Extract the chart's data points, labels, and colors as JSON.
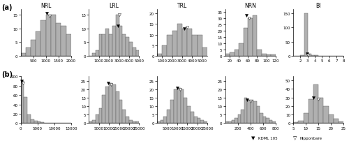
{
  "title_a": "(a)",
  "title_b": "(b)",
  "col_titles": [
    "NRL",
    "LRL",
    "TRL",
    "NRN",
    "BI"
  ],
  "legend_labels": [
    "KDML 105",
    "Nipponbare"
  ],
  "row_a": {
    "NRL": {
      "bin_edges": [
        0,
        200,
        400,
        600,
        800,
        1000,
        1200,
        1400,
        1600,
        1800,
        2000
      ],
      "counts": [
        1,
        3,
        6,
        9,
        13,
        15,
        15,
        12,
        11,
        8,
        3
      ],
      "ylim": [
        0,
        17
      ],
      "yticks": [
        0,
        5,
        10,
        15
      ],
      "xlim": [
        0,
        2000
      ],
      "xticks": [
        500,
        1000,
        1500,
        2000
      ],
      "kdml_x": 1050,
      "kdml_y": 15.5,
      "nip_x": 1150,
      "nip_y": 14.5,
      "kdml_filled": true,
      "nip_filled": false
    },
    "LRL": {
      "bin_edges": [
        0,
        333,
        666,
        1000,
        1333,
        1666,
        2000,
        2333,
        2666,
        3000,
        3333,
        3666,
        4000,
        4333,
        4666,
        5000
      ],
      "counts": [
        0,
        1,
        2,
        8,
        8,
        10,
        8,
        11,
        15,
        11,
        8,
        7,
        5,
        3,
        2,
        1
      ],
      "ylim": [
        0,
        17
      ],
      "yticks": [
        0,
        5,
        10,
        15
      ],
      "xlim": [
        0,
        5000
      ],
      "xticks": [
        1000,
        2000,
        3000,
        4000,
        5000
      ],
      "kdml_x": 2900,
      "kdml_y": 11,
      "nip_x": 3000,
      "nip_y": 15,
      "kdml_filled": true,
      "nip_filled": false
    },
    "TRL": {
      "bin_edges": [
        500,
        1000,
        1500,
        2000,
        2500,
        3000,
        3500,
        4000,
        4500,
        5000,
        5500
      ],
      "counts": [
        1,
        5,
        10,
        12,
        15,
        13,
        13,
        10,
        10,
        4,
        2
      ],
      "ylim": [
        0,
        22
      ],
      "yticks": [
        0,
        5,
        10,
        15,
        20
      ],
      "xlim": [
        500,
        5500
      ],
      "xticks": [
        1000,
        2000,
        3000,
        4000,
        5000
      ],
      "kdml_x": 3200,
      "kdml_y": 13,
      "nip_x": 3500,
      "nip_y": 13.5,
      "kdml_filled": false,
      "nip_filled": false
    },
    "NRN": {
      "bin_edges": [
        10,
        20,
        30,
        40,
        50,
        60,
        70,
        80,
        90,
        100,
        110,
        120
      ],
      "counts": [
        2,
        3,
        5,
        10,
        22,
        30,
        32,
        5,
        2,
        1,
        1,
        0
      ],
      "ylim": [
        0,
        37
      ],
      "yticks": [
        0,
        5,
        10,
        15,
        20,
        25,
        30,
        35
      ],
      "xlim": [
        10,
        120
      ],
      "xticks": [
        20,
        40,
        60,
        80,
        100,
        120
      ],
      "kdml_x": 57,
      "kdml_y": 32,
      "nip_x": 63,
      "nip_y": 30,
      "kdml_filled": true,
      "nip_filled": false
    },
    "BI": {
      "bin_edges": [
        1.0,
        1.5,
        2.0,
        2.5,
        3.0,
        3.5,
        4.0,
        4.5,
        5.0,
        5.5,
        6.0,
        6.5,
        7.0,
        7.5,
        8.0
      ],
      "counts": [
        0,
        0,
        3,
        150,
        7,
        3,
        2,
        1,
        0,
        0,
        0,
        0,
        0,
        0,
        0
      ],
      "ylim": [
        0,
        165
      ],
      "yticks": [
        0,
        50,
        100,
        150
      ],
      "xlim": [
        1.0,
        8.0
      ],
      "xticks": [
        2,
        3,
        4,
        5,
        6,
        7,
        8
      ],
      "kdml_x": 2.9,
      "kdml_y": 7,
      "nip_x": 3.0,
      "nip_y": 3,
      "kdml_filled": true,
      "nip_filled": false
    }
  },
  "row_b": {
    "NRL": {
      "bin_edges": [
        0,
        1000,
        2000,
        3000,
        4000,
        5000,
        6000,
        7000,
        8000,
        9000,
        10000,
        11000,
        12000,
        13000,
        14000,
        15000
      ],
      "counts": [
        90,
        55,
        18,
        8,
        5,
        3,
        2,
        1,
        0,
        0,
        0,
        0,
        0,
        0,
        0,
        0
      ],
      "ylim": [
        0,
        100
      ],
      "yticks": [
        0,
        20,
        40,
        60,
        80,
        100
      ],
      "xlim": [
        0,
        15000
      ],
      "xticks": [
        0,
        5000,
        10000,
        15000
      ],
      "kdml_x": 300,
      "kdml_y": 90,
      "nip_x": 700,
      "nip_y": 85,
      "kdml_filled": true,
      "nip_filled": false
    },
    "LRL": {
      "bin_edges": [
        0,
        1667,
        3333,
        5000,
        6667,
        8333,
        10000,
        11667,
        13333,
        15000,
        16667,
        18333,
        20000,
        21667,
        23333,
        25000
      ],
      "counts": [
        1,
        2,
        5,
        9,
        17,
        22,
        24,
        23,
        19,
        14,
        8,
        4,
        2,
        1,
        1,
        0
      ],
      "ylim": [
        0,
        28
      ],
      "yticks": [
        0,
        5,
        10,
        15,
        20,
        25
      ],
      "xlim": [
        0,
        25000
      ],
      "xticks": [
        5000,
        10000,
        15000,
        20000,
        25000
      ],
      "kdml_x": 9500,
      "kdml_y": 24,
      "nip_x": 11000,
      "nip_y": 23,
      "kdml_filled": true,
      "nip_filled": false
    },
    "TRL": {
      "bin_edges": [
        0,
        1667,
        3333,
        5000,
        6667,
        8333,
        10000,
        11667,
        13333,
        15000,
        16667,
        18333,
        20000,
        21667,
        23333,
        25000
      ],
      "counts": [
        1,
        2,
        4,
        8,
        14,
        20,
        21,
        20,
        15,
        10,
        7,
        4,
        3,
        2,
        1,
        0
      ],
      "ylim": [
        0,
        28
      ],
      "yticks": [
        0,
        5,
        10,
        15,
        20,
        25
      ],
      "xlim": [
        0,
        25000
      ],
      "xticks": [
        5000,
        10000,
        15000,
        20000,
        25000
      ],
      "kdml_x": 10000,
      "kdml_y": 21,
      "nip_x": 11500,
      "nip_y": 20,
      "kdml_filled": true,
      "nip_filled": false
    },
    "NRN": {
      "bin_edges": [
        0,
        50,
        100,
        150,
        200,
        250,
        300,
        350,
        400,
        450,
        500,
        550,
        600,
        650,
        700,
        750,
        800
      ],
      "counts": [
        1,
        1,
        2,
        3,
        5,
        8,
        15,
        14,
        14,
        13,
        10,
        6,
        4,
        3,
        2,
        1,
        1
      ],
      "ylim": [
        0,
        28
      ],
      "yticks": [
        0,
        5,
        10,
        15,
        20,
        25
      ],
      "xlim": [
        0,
        800
      ],
      "xticks": [
        200,
        400,
        600,
        800
      ],
      "kdml_x": 350,
      "kdml_y": 14,
      "nip_x": 400,
      "nip_y": 13,
      "kdml_filled": true,
      "nip_filled": false
    },
    "BI": {
      "bin_edges": [
        5,
        7,
        9,
        11,
        13,
        15,
        17,
        19,
        21,
        23,
        25
      ],
      "counts": [
        1,
        3,
        12,
        28,
        45,
        30,
        20,
        10,
        5,
        2,
        1
      ],
      "ylim": [
        0,
        55
      ],
      "yticks": [
        0,
        10,
        20,
        30,
        40,
        50
      ],
      "xlim": [
        5,
        25
      ],
      "xticks": [
        5,
        10,
        15,
        20,
        25
      ],
      "kdml_x": 13,
      "kdml_y": 30,
      "nip_x": 15,
      "nip_y": 28,
      "kdml_filled": true,
      "nip_filled": false
    }
  },
  "bar_color_filled": "#b0b0b0",
  "bar_color_open": "#ffffff",
  "bar_edge_color": "#555555",
  "background_color": "#ffffff"
}
